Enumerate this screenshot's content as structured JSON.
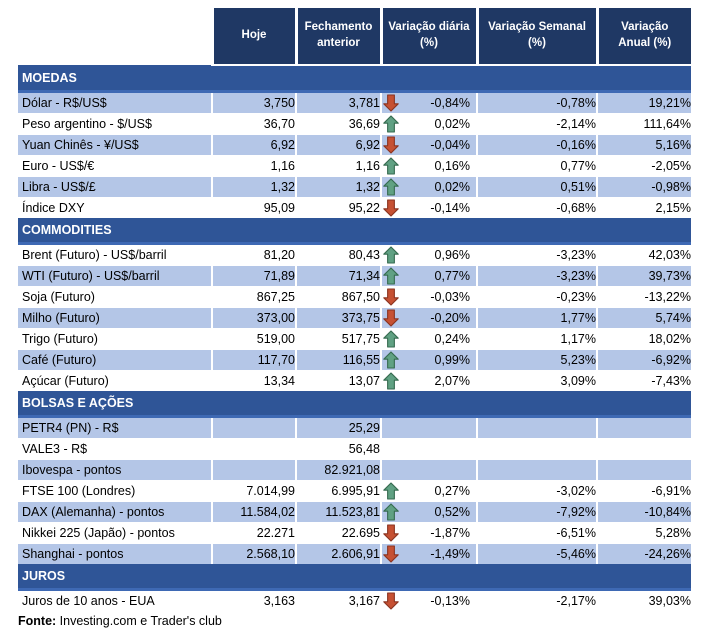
{
  "colors": {
    "header_bg": "#1F3864",
    "section_bg": "#2F5597",
    "row_shaded": "#B4C6E7",
    "row_plain": "#FFFFFF",
    "up_arrow_fill": "#60A183",
    "up_arrow_stroke": "#366B50",
    "down_arrow_fill": "#C65133",
    "down_arrow_stroke": "#8B3420"
  },
  "chart_data": {
    "type": "table",
    "columns": [
      "Hoje",
      "Fechamento anterior",
      "Variação diária (%)",
      "Variação Semanal (%)",
      "Variação Anual (%)"
    ],
    "sections": [
      {
        "title": "MOEDAS",
        "first_row_shaded": true,
        "rows": [
          {
            "label": "Dólar - R$/US$",
            "hoje": "3,750",
            "fechamento": "3,781",
            "arrow": "down",
            "variacao_diaria": "-0,84%",
            "variacao_semanal": "-0,78%",
            "variacao_anual": "19,21%"
          },
          {
            "label": "Peso argentino - $/US$",
            "hoje": "36,70",
            "fechamento": "36,69",
            "arrow": "up",
            "variacao_diaria": "0,02%",
            "variacao_semanal": "-2,14%",
            "variacao_anual": "111,64%"
          },
          {
            "label": "Yuan Chinês - ¥/US$",
            "hoje": "6,92",
            "fechamento": "6,92",
            "arrow": "down",
            "variacao_diaria": "-0,04%",
            "variacao_semanal": "-0,16%",
            "variacao_anual": "5,16%"
          },
          {
            "label": "Euro - US$/€",
            "hoje": "1,16",
            "fechamento": "1,16",
            "arrow": "up",
            "variacao_diaria": "0,16%",
            "variacao_semanal": "0,77%",
            "variacao_anual": "-2,05%"
          },
          {
            "label": "Libra - US$/£",
            "hoje": "1,32",
            "fechamento": "1,32",
            "arrow": "up",
            "variacao_diaria": "0,02%",
            "variacao_semanal": "0,51%",
            "variacao_anual": "-0,98%"
          },
          {
            "label": "Índice DXY",
            "hoje": "95,09",
            "fechamento": "95,22",
            "arrow": "down",
            "variacao_diaria": "-0,14%",
            "variacao_semanal": "-0,68%",
            "variacao_anual": "2,15%"
          }
        ]
      },
      {
        "title": "COMMODITIES",
        "first_row_shaded": false,
        "rows": [
          {
            "label": "Brent (Futuro) - US$/barril",
            "hoje": "81,20",
            "fechamento": "80,43",
            "arrow": "up",
            "variacao_diaria": "0,96%",
            "variacao_semanal": "-3,23%",
            "variacao_anual": "42,03%"
          },
          {
            "label": "WTI (Futuro) - US$/barril",
            "hoje": "71,89",
            "fechamento": "71,34",
            "arrow": "up",
            "variacao_diaria": "0,77%",
            "variacao_semanal": "-3,23%",
            "variacao_anual": "39,73%"
          },
          {
            "label": "Soja (Futuro)",
            "hoje": "867,25",
            "fechamento": "867,50",
            "arrow": "down",
            "variacao_diaria": "-0,03%",
            "variacao_semanal": "-0,23%",
            "variacao_anual": "-13,22%"
          },
          {
            "label": "Milho (Futuro)",
            "hoje": "373,00",
            "fechamento": "373,75",
            "arrow": "down",
            "variacao_diaria": "-0,20%",
            "variacao_semanal": "1,77%",
            "variacao_anual": "5,74%"
          },
          {
            "label": "Trigo (Futuro)",
            "hoje": "519,00",
            "fechamento": "517,75",
            "arrow": "up",
            "variacao_diaria": "0,24%",
            "variacao_semanal": "1,17%",
            "variacao_anual": "18,02%"
          },
          {
            "label": "Café (Futuro)",
            "hoje": "117,70",
            "fechamento": "116,55",
            "arrow": "up",
            "variacao_diaria": "0,99%",
            "variacao_semanal": "5,23%",
            "variacao_anual": "-6,92%"
          },
          {
            "label": "Açúcar (Futuro)",
            "hoje": "13,34",
            "fechamento": "13,07",
            "arrow": "up",
            "variacao_diaria": "2,07%",
            "variacao_semanal": "3,09%",
            "variacao_anual": "-7,43%"
          }
        ]
      },
      {
        "title": "BOLSAS E AÇÕES",
        "first_row_shaded": true,
        "rows": [
          {
            "label": "PETR4 (PN) - R$",
            "hoje": "",
            "fechamento": "25,29",
            "arrow": null,
            "variacao_diaria": "",
            "variacao_semanal": "",
            "variacao_anual": ""
          },
          {
            "label": "VALE3 - R$",
            "hoje": "",
            "fechamento": "56,48",
            "arrow": null,
            "variacao_diaria": "",
            "variacao_semanal": "",
            "variacao_anual": ""
          },
          {
            "label": "Ibovespa - pontos",
            "hoje": "",
            "fechamento": "82.921,08",
            "arrow": null,
            "variacao_diaria": "",
            "variacao_semanal": "",
            "variacao_anual": ""
          },
          {
            "label": "FTSE 100 (Londres)",
            "hoje": "7.014,99",
            "fechamento": "6.995,91",
            "arrow": "up",
            "variacao_diaria": "0,27%",
            "variacao_semanal": "-3,02%",
            "variacao_anual": "-6,91%"
          },
          {
            "label": "DAX (Alemanha) - pontos",
            "hoje": "11.584,02",
            "fechamento": "11.523,81",
            "arrow": "up",
            "variacao_diaria": "0,52%",
            "variacao_semanal": "-7,92%",
            "variacao_anual": "-10,84%"
          },
          {
            "label": "Nikkei 225 (Japão) - pontos",
            "hoje": "22.271",
            "fechamento": "22.695",
            "arrow": "down",
            "variacao_diaria": "-1,87%",
            "variacao_semanal": "-6,51%",
            "variacao_anual": "5,28%"
          },
          {
            "label": "Shanghai - pontos",
            "hoje": "2.568,10",
            "fechamento": "2.606,91",
            "arrow": "down",
            "variacao_diaria": "-1,49%",
            "variacao_semanal": "-5,46%",
            "variacao_anual": "-24,26%"
          }
        ]
      },
      {
        "title": "JUROS",
        "first_row_shaded": false,
        "rows": [
          {
            "label": "Juros de 10 anos - EUA",
            "hoje": "3,163",
            "fechamento": "3,167",
            "arrow": "down",
            "variacao_diaria": "-0,13%",
            "variacao_semanal": "-2,17%",
            "variacao_anual": "39,03%"
          }
        ]
      }
    ],
    "source": {
      "label": "Fonte:",
      "text": " Investing.com e Trader's club"
    }
  }
}
